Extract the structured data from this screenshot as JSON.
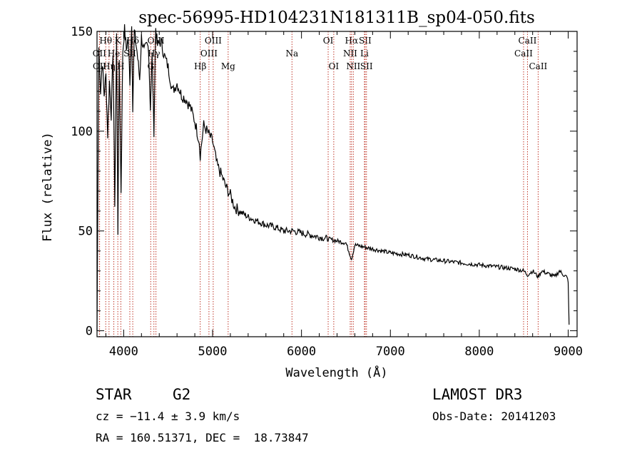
{
  "chart_data": {
    "type": "line",
    "title": "spec-56995-HD104231N181311B_sp04-050.fits",
    "xlabel": "Wavelength (Å)",
    "ylabel": "Flux (relative)",
    "xlim": [
      3700,
      9100
    ],
    "ylim": [
      -3,
      150
    ],
    "grid": false,
    "x_ticks": [
      "4000",
      "5000",
      "6000",
      "7000",
      "8000",
      "9000"
    ],
    "y_ticks": [
      "0",
      "50",
      "100",
      "150"
    ],
    "series": [
      {
        "name": "spectrum",
        "x": [
          3700,
          3720,
          3740,
          3760,
          3780,
          3800,
          3820,
          3840,
          3860,
          3880,
          3900,
          3920,
          3935,
          3950,
          3970,
          3990,
          4010,
          4030,
          4050,
          4070,
          4090,
          4102,
          4120,
          4150,
          4180,
          4200,
          4230,
          4260,
          4280,
          4300,
          4320,
          4340,
          4360,
          4380,
          4420,
          4450,
          4500,
          4550,
          4600,
          4650,
          4700,
          4750,
          4800,
          4850,
          4861,
          4900,
          4950,
          5000,
          5050,
          5100,
          5150,
          5200,
          5250,
          5300,
          5400,
          5500,
          5600,
          5700,
          5800,
          5900,
          6000,
          6100,
          6200,
          6300,
          6400,
          6500,
          6563,
          6600,
          6700,
          6800,
          6900,
          7000,
          7200,
          7400,
          7600,
          7800,
          8000,
          8200,
          8400,
          8500,
          8542,
          8600,
          8662,
          8700,
          8800,
          8850,
          8900,
          8950,
          8980,
          9000,
          9010
        ],
        "y": [
          0,
          142,
          120,
          135,
          118,
          128,
          98,
          125,
          108,
          140,
          64,
          148,
          50,
          136,
          70,
          140,
          151,
          141,
          147,
          125,
          155,
          110,
          150,
          140,
          126,
          147,
          140,
          143,
          142,
          112,
          138,
          100,
          152,
          143,
          145,
          139,
          132,
          120,
          124,
          118,
          116,
          112,
          105,
          95,
          88,
          103,
          99,
          95,
          83,
          78,
          72,
          68,
          62,
          60,
          57,
          55,
          53,
          52,
          50,
          50,
          49,
          48,
          47,
          46,
          45,
          44,
          36,
          43,
          42,
          41,
          40,
          39,
          38,
          36,
          35,
          34,
          33,
          32,
          31,
          30,
          28,
          30,
          27,
          30,
          28,
          27,
          30,
          28,
          27,
          25,
          3
        ]
      }
    ],
    "lines": [
      {
        "label": "Hθ",
        "wave": 3798,
        "row": 0
      },
      {
        "label": "OII",
        "wave": 3727,
        "row": 1
      },
      {
        "label": "OII",
        "wave": 3729,
        "row": 2
      },
      {
        "label": "Hη",
        "wave": 3835,
        "row": 2
      },
      {
        "label": "He",
        "wave": 3889,
        "row": 1
      },
      {
        "label": "K",
        "wave": 3934,
        "row": 0
      },
      {
        "label": "H",
        "wave": 3968,
        "row": 2
      },
      {
        "label": "SII",
        "wave": 4069,
        "row": 1
      },
      {
        "label": "Hδ",
        "wave": 4102,
        "row": 0
      },
      {
        "label": "OIII",
        "wave": 4363,
        "row": 0
      },
      {
        "label": "Hγ",
        "wave": 4340,
        "row": 1
      },
      {
        "label": "G",
        "wave": 4304,
        "row": 2
      },
      {
        "label": "Hβ",
        "wave": 4861,
        "row": 2
      },
      {
        "label": "OIII",
        "wave": 4959,
        "row": 1
      },
      {
        "label": "OIII",
        "wave": 5007,
        "row": 0
      },
      {
        "label": "Mg",
        "wave": 5175,
        "row": 2
      },
      {
        "label": "Na",
        "wave": 5893,
        "row": 1
      },
      {
        "label": "OI",
        "wave": 6300,
        "row": 0
      },
      {
        "label": "OI",
        "wave": 6363,
        "row": 2
      },
      {
        "label": "Hα",
        "wave": 6563,
        "row": 0
      },
      {
        "label": "NII",
        "wave": 6548,
        "row": 1
      },
      {
        "label": "NII",
        "wave": 6583,
        "row": 2
      },
      {
        "label": "SII",
        "wave": 6716,
        "row": 0
      },
      {
        "label": "Li",
        "wave": 6708,
        "row": 1
      },
      {
        "label": "SII",
        "wave": 6731,
        "row": 2
      },
      {
        "label": "CaII",
        "wave": 8542,
        "row": 0
      },
      {
        "label": "CaII",
        "wave": 8498,
        "row": 1
      },
      {
        "label": "CaII",
        "wave": 8662,
        "row": 2
      }
    ]
  },
  "info": {
    "class": "STAR",
    "subclass": "G2",
    "survey": "LAMOST DR3",
    "cz": "cz = −11.4 ± 3.9 km/s",
    "obs_date": "Obs-Date: 20141203",
    "coords": "RA = 160.51371, DEC =  18.73847"
  }
}
